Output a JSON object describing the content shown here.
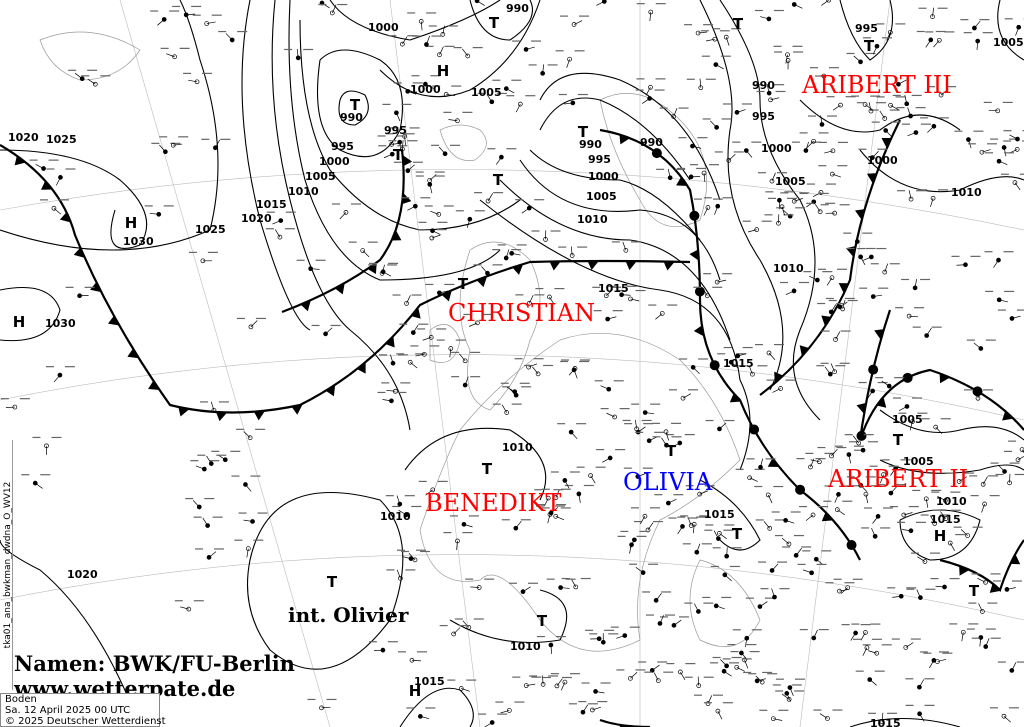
{
  "map": {
    "type": "surface-analysis",
    "pressure_labels": [
      "1020",
      "1025",
      "1030",
      "1025",
      "1020",
      "1015",
      "1010",
      "1005",
      "1000",
      "995",
      "995",
      "990",
      "1000",
      "1000",
      "1005",
      "990",
      "990",
      "995",
      "1000",
      "1005",
      "1010",
      "990",
      "995",
      "1000",
      "1005",
      "1010",
      "1015",
      "1015",
      "1010",
      "1010",
      "1015",
      "1020",
      "1030",
      "1010",
      "1015",
      "1015",
      "990",
      "995",
      "1000",
      "1005",
      "1005",
      "1010",
      "1005",
      "1015",
      "1010"
    ],
    "centers": [
      "H",
      "T",
      "T",
      "H",
      "T",
      "T",
      "T",
      "T",
      "T",
      "T",
      "T",
      "H",
      "T",
      "T",
      "T",
      "T",
      "H",
      "H",
      "T",
      "T"
    ],
    "system_names": [
      {
        "text": "CHRISTIAN",
        "color": "#ff0000"
      },
      {
        "text": "BENEDIKT",
        "color": "#ff0000"
      },
      {
        "text": "OLIVIA",
        "color": "#0000ff"
      },
      {
        "text": "ARIBERT III",
        "color": "#ff0000"
      },
      {
        "text": "ARIBERT II",
        "color": "#ff0000"
      },
      {
        "text": "int. Olivier",
        "color": "#000000"
      }
    ]
  },
  "credits": {
    "names": "Namen: BWK/FU-Berlin",
    "website": "www.wetterpate.de"
  },
  "info": {
    "level": "Boden",
    "datetime": "Sa. 12 April 2025 00 UTC",
    "copyright": "© 2025 Deutscher Wetterdienst"
  },
  "side_tag": "tka01_ana_bwkman_dwdna_O_WV12"
}
